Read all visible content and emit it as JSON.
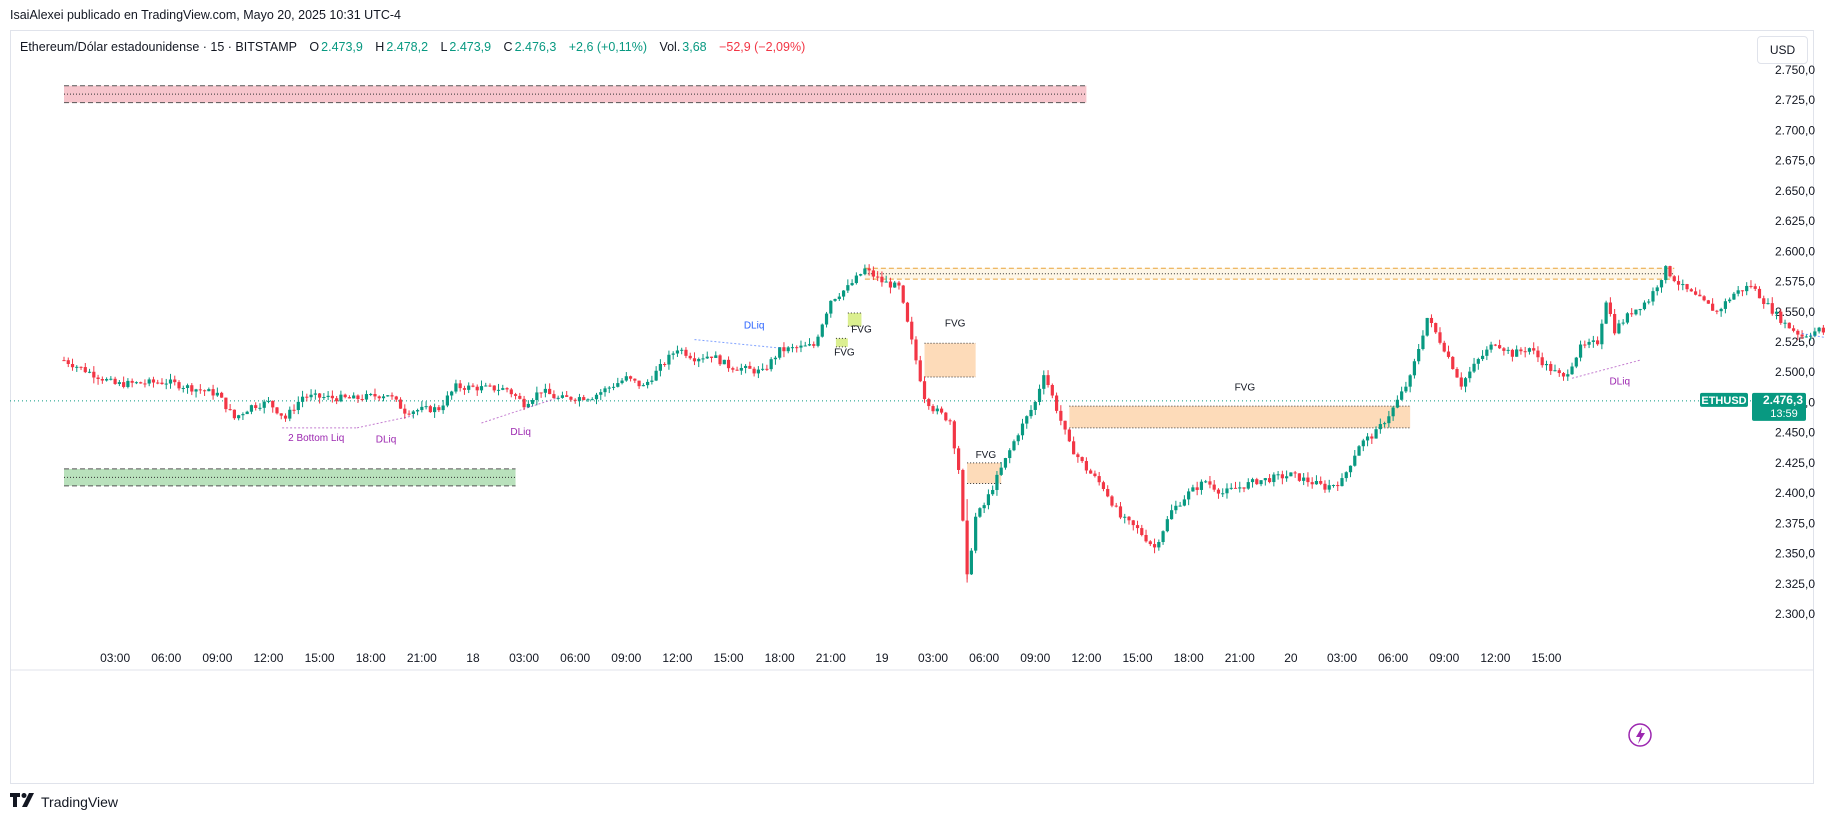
{
  "header": {
    "credit": "IsaiAlexei publicado en TradingView.com, Mayo 20, 2025 10:31 UTC-4"
  },
  "legend": {
    "symbol": "Ethereum/Dólar estadounidense · 15 · BITSTAMP",
    "o_label": "O",
    "o_value": "2.473,9",
    "h_label": "H",
    "h_value": "2.478,2",
    "l_label": "L",
    "l_value": "2.473,9",
    "c_label": "C",
    "c_value": "2.476,3",
    "change": "+2,6 (+0,11%)",
    "vol_label": "Vol.",
    "vol_value": "3,68",
    "vol_change": "−52,9 (−2,09%)"
  },
  "currency_button": "USD",
  "price_tag": {
    "ticker": "ETHUSD",
    "price": "2.476,3",
    "countdown": "13:59"
  },
  "footer": {
    "brand": "TradingView",
    "logo_icon": "tradingview-logo-icon"
  },
  "colors": {
    "up": "#089981",
    "down": "#f23645",
    "text": "#131722",
    "axis_text": "#131722",
    "supply_zone": "#f5c2c9",
    "demand_zone": "#b5dfb8",
    "fvg": "#fdd9b5",
    "fvg_small": "#d9ee8a",
    "liquidity_blue": "#2962ff",
    "liquidity_purple": "#9c27b0"
  },
  "chart_data": {
    "type": "candlestick",
    "symbol": "Ethereum/Dólar estadounidense",
    "interval": "15",
    "exchange": "BITSTAMP",
    "ylim": [
      2287.5,
      2762.5
    ],
    "y_ticks": [
      "2.750,0",
      "2.725,0",
      "2.700,0",
      "2.675,0",
      "2.650,0",
      "2.625,0",
      "2.600,0",
      "2.575,0",
      "2.550,0",
      "2.525,0",
      "2.500,0",
      "2.475,0",
      "2.450,0",
      "2.425,0",
      "2.400,0",
      "2.375,0",
      "2.350,0",
      "2.325,0",
      "2.300,0"
    ],
    "y_tick_values": [
      2750,
      2725,
      2700,
      2675,
      2650,
      2625,
      2600,
      2575,
      2550,
      2525,
      2500,
      2475,
      2450,
      2425,
      2400,
      2375,
      2350,
      2325,
      2300
    ],
    "x_ticks": [
      "03:00",
      "06:00",
      "09:00",
      "12:00",
      "15:00",
      "18:00",
      "21:00",
      "18",
      "03:00",
      "06:00",
      "09:00",
      "12:00",
      "15:00",
      "18:00",
      "21:00",
      "19",
      "03:00",
      "06:00",
      "09:00",
      "12:00",
      "15:00",
      "18:00",
      "21:00",
      "20",
      "03:00",
      "06:00",
      "09:00",
      "12:00",
      "15:00"
    ],
    "x_tick_hours": [
      3,
      6,
      9,
      12,
      15,
      18,
      21,
      24,
      27,
      30,
      33,
      36,
      39,
      42,
      45,
      48,
      51,
      54,
      57,
      60,
      63,
      66,
      69,
      72,
      75,
      78,
      81,
      84,
      87
    ],
    "last_price": 2476.3,
    "path": [
      [
        0,
        2510
      ],
      [
        3,
        2490
      ],
      [
        6,
        2492
      ],
      [
        9,
        2482
      ],
      [
        10,
        2462
      ],
      [
        11,
        2472
      ],
      [
        12,
        2475
      ],
      [
        13,
        2462
      ],
      [
        14,
        2480
      ],
      [
        17,
        2478
      ],
      [
        19,
        2482
      ],
      [
        20,
        2468
      ],
      [
        22,
        2470
      ],
      [
        23,
        2488
      ],
      [
        26,
        2486
      ],
      [
        27,
        2474
      ],
      [
        28,
        2485
      ],
      [
        29,
        2478
      ],
      [
        31,
        2480
      ],
      [
        33,
        2495
      ],
      [
        34,
        2488
      ],
      [
        36,
        2520
      ],
      [
        37,
        2512
      ],
      [
        38,
        2514
      ],
      [
        39,
        2505
      ],
      [
        41,
        2500
      ],
      [
        42,
        2518
      ],
      [
        44,
        2522
      ],
      [
        45,
        2560
      ],
      [
        46,
        2570
      ],
      [
        47,
        2585
      ],
      [
        48,
        2575
      ],
      [
        49,
        2570
      ],
      [
        49.5,
        2540
      ],
      [
        50,
        2510
      ],
      [
        50.5,
        2480
      ],
      [
        51,
        2470
      ],
      [
        52,
        2460
      ],
      [
        52.5,
        2420
      ],
      [
        53,
        2330
      ],
      [
        53.5,
        2380
      ],
      [
        54,
        2390
      ],
      [
        55,
        2420
      ],
      [
        56,
        2450
      ],
      [
        57,
        2475
      ],
      [
        57.5,
        2500
      ],
      [
        58,
        2480
      ],
      [
        58.5,
        2460
      ],
      [
        59,
        2440
      ],
      [
        60,
        2420
      ],
      [
        61,
        2405
      ],
      [
        62,
        2380
      ],
      [
        63,
        2370
      ],
      [
        64,
        2355
      ],
      [
        65,
        2385
      ],
      [
        66,
        2400
      ],
      [
        67,
        2410
      ],
      [
        68,
        2400
      ],
      [
        70,
        2410
      ],
      [
        72,
        2415
      ],
      [
        74,
        2405
      ],
      [
        75,
        2410
      ],
      [
        76,
        2440
      ],
      [
        77,
        2450
      ],
      [
        78,
        2470
      ],
      [
        79,
        2495
      ],
      [
        80,
        2545
      ],
      [
        81,
        2520
      ],
      [
        82,
        2490
      ],
      [
        83,
        2510
      ],
      [
        84,
        2525
      ],
      [
        85,
        2515
      ],
      [
        86,
        2520
      ],
      [
        87,
        2505
      ],
      [
        88,
        2495
      ],
      [
        89,
        2520
      ],
      [
        90,
        2525
      ],
      [
        90.5,
        2560
      ],
      [
        91,
        2535
      ],
      [
        92,
        2550
      ],
      [
        93,
        2560
      ],
      [
        94,
        2585
      ],
      [
        95,
        2570
      ],
      [
        96,
        2560
      ],
      [
        97,
        2550
      ],
      [
        98,
        2565
      ],
      [
        99,
        2572
      ],
      [
        100,
        2555
      ],
      [
        101,
        2540
      ],
      [
        102,
        2530
      ],
      [
        103,
        2535
      ],
      [
        104,
        2528
      ],
      [
        105,
        2530
      ],
      [
        106,
        2520
      ],
      [
        107,
        2515
      ],
      [
        108,
        2505
      ],
      [
        109,
        2490
      ],
      [
        110,
        2480
      ],
      [
        111,
        2472
      ],
      [
        112,
        2476.3
      ]
    ],
    "zones": [
      {
        "kind": "supply",
        "label": "",
        "from": 0,
        "to": 60,
        "low": 2723,
        "high": 2737
      },
      {
        "kind": "demand",
        "label": "",
        "from": 0,
        "to": 26.5,
        "low": 2406,
        "high": 2420
      },
      {
        "kind": "range",
        "label": "",
        "from": 47,
        "to": 94.5,
        "low": 2577,
        "high": 2586
      },
      {
        "kind": "fvg",
        "label": "FVG",
        "from": 50.5,
        "to": 53.5,
        "low": 2496,
        "high": 2524
      },
      {
        "kind": "fvg",
        "label": "FVG",
        "from": 59,
        "to": 79,
        "low": 2454,
        "high": 2472
      },
      {
        "kind": "fvg",
        "label": "FVG",
        "from": 53,
        "to": 55,
        "low": 2408,
        "high": 2425
      },
      {
        "kind": "fvg_small",
        "label": "FVG",
        "from": 46,
        "to": 46.8,
        "low": 2538,
        "high": 2549
      },
      {
        "kind": "fvg_small",
        "label": "FVG",
        "from": 45.3,
        "to": 46,
        "low": 2521,
        "high": 2528
      }
    ],
    "annotations": [
      {
        "text": "DLiq",
        "x": 40.5,
        "y": 2536,
        "color": "liquidity_blue"
      },
      {
        "text": "DLiq",
        "x": 105.5,
        "y": 2542,
        "color": "liquidity_blue"
      },
      {
        "text": "2 Bottom Liq",
        "x": 14.8,
        "y": 2443,
        "color": "liquidity_purple"
      },
      {
        "text": "DLiq",
        "x": 18.9,
        "y": 2442,
        "color": "liquidity_purple"
      },
      {
        "text": "DLiq",
        "x": 26.8,
        "y": 2448,
        "color": "liquidity_purple"
      },
      {
        "text": "DLiq",
        "x": 91.3,
        "y": 2490,
        "color": "liquidity_purple"
      },
      {
        "text": "FVG",
        "x": 52.3,
        "y": 2538,
        "color": "text"
      },
      {
        "text": "FVG",
        "x": 69.3,
        "y": 2485,
        "color": "text"
      },
      {
        "text": "FVG",
        "x": 54.1,
        "y": 2429,
        "color": "text"
      },
      {
        "text": "FVG",
        "x": 46.8,
        "y": 2533,
        "color": "text"
      },
      {
        "text": "FVG",
        "x": 45.8,
        "y": 2514,
        "color": "text"
      }
    ],
    "liquidity_lines": [
      {
        "x1": 37,
        "y1": 2527,
        "x2": 42,
        "y2": 2520,
        "color": "liquidity_blue"
      },
      {
        "x1": 102,
        "y1": 2532,
        "x2": 107,
        "y2": 2520,
        "color": "liquidity_blue"
      },
      {
        "x1": 12.8,
        "y1": 2454,
        "x2": 17.2,
        "y2": 2454,
        "color": "liquidity_purple"
      },
      {
        "x1": 17.2,
        "y1": 2454,
        "x2": 20.5,
        "y2": 2464,
        "color": "liquidity_purple"
      },
      {
        "x1": 24.5,
        "y1": 2458,
        "x2": 29,
        "y2": 2479,
        "color": "liquidity_purple"
      },
      {
        "x1": 88.5,
        "y1": 2495,
        "x2": 92.5,
        "y2": 2510,
        "color": "liquidity_purple"
      }
    ]
  }
}
